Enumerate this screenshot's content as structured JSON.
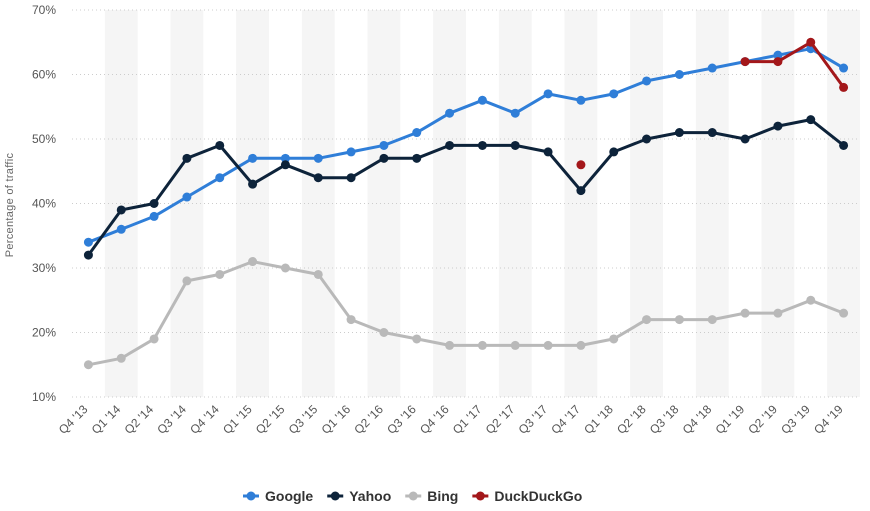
{
  "chart_data": {
    "type": "line",
    "title": "",
    "xlabel": "",
    "ylabel": "Percentage of traffic",
    "ylim": [
      10,
      70
    ],
    "yticks": [
      10,
      20,
      30,
      40,
      50,
      60,
      70
    ],
    "ytick_labels": [
      "10%",
      "20%",
      "30%",
      "40%",
      "50%",
      "60%",
      "70%"
    ],
    "y_unit": "%",
    "grid": "horizontal-dotted",
    "legend_position": "bottom-center",
    "categories": [
      "Q4 '13",
      "Q1 '14",
      "Q2 '14",
      "Q3 '14",
      "Q4 '14",
      "Q1 '15",
      "Q2 '15",
      "Q3 '15",
      "Q1 '16",
      "Q2 '16",
      "Q3 '16",
      "Q4 '16",
      "Q1 '17",
      "Q2 '17",
      "Q3 '17",
      "Q4 '17",
      "Q1 '18",
      "Q2 '18",
      "Q3 '18",
      "Q4 '18",
      "Q1 '19",
      "Q2 '19",
      "Q3 '19",
      "Q4 '19"
    ],
    "series": [
      {
        "name": "Google",
        "color": "#2f7ed8",
        "values": [
          34,
          36,
          38,
          41,
          44,
          47,
          47,
          47,
          48,
          49,
          51,
          54,
          56,
          54,
          57,
          56,
          57,
          59,
          60,
          61,
          62,
          63,
          64,
          61
        ]
      },
      {
        "name": "Yahoo",
        "color": "#0d233a",
        "values": [
          32,
          39,
          40,
          47,
          49,
          43,
          46,
          44,
          44,
          47,
          47,
          49,
          49,
          49,
          48,
          42,
          48,
          50,
          51,
          51,
          50,
          52,
          53,
          49
        ]
      },
      {
        "name": "Bing",
        "color": "#b9b9b9",
        "values": [
          15,
          16,
          19,
          28,
          29,
          31,
          30,
          29,
          22,
          20,
          19,
          18,
          18,
          18,
          18,
          18,
          19,
          22,
          22,
          22,
          23,
          23,
          25,
          23
        ]
      },
      {
        "name": "DuckDuckGo",
        "color": "#a3171a",
        "values": [
          null,
          null,
          null,
          null,
          null,
          null,
          null,
          null,
          null,
          null,
          null,
          null,
          null,
          null,
          null,
          46,
          null,
          null,
          null,
          null,
          62,
          62,
          65,
          58
        ]
      }
    ]
  }
}
